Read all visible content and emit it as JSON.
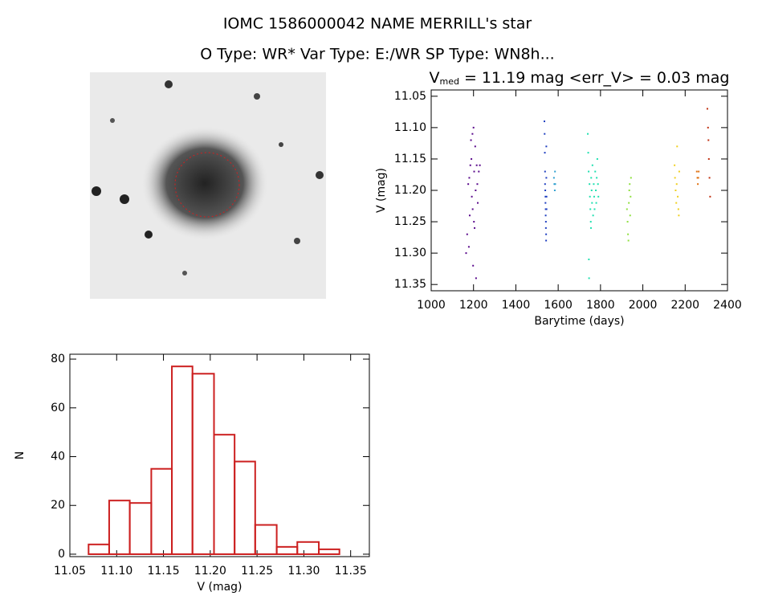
{
  "header": {
    "title": "IOMC 1586000042    NAME MERRILL's star",
    "subtitle": "O Type: WR*   Var Type: E:/WR   SP Type: WN8h..."
  },
  "chart_data": [
    {
      "type": "scatter",
      "title_symbol": "V",
      "title_subscript": "med",
      "title_rest": "= 11.19 mag <err_V> = 0.03 mag",
      "x_label": "Barytime (days)",
      "y_label": "V (mag)",
      "xlim": [
        1000,
        2400
      ],
      "xticks": [
        1000,
        1200,
        1400,
        1600,
        1800,
        2000,
        2200,
        2400
      ],
      "ylim": [
        11.36,
        11.04
      ],
      "yticks": [
        11.05,
        {
          "value": 11.1,
          "label": "11.10"
        },
        11.15,
        {
          "value": 11.2,
          "label": "11.20"
        },
        11.25,
        {
          "value": 11.3,
          "label": "11.30"
        },
        11.35
      ],
      "series": [
        {
          "color": "#5a0a8c",
          "x": [
            1165,
            1170,
            1175,
            1180,
            1182,
            1185,
            1190,
            1192,
            1195,
            1198,
            1200,
            1203,
            1205,
            1208,
            1210,
            1212,
            1215,
            1220,
            1225,
            1230,
            1178,
            1188,
            1196,
            1202,
            1218
          ],
          "y": [
            11.3,
            11.27,
            11.19,
            11.18,
            11.24,
            11.16,
            11.15,
            11.21,
            11.11,
            11.32,
            11.1,
            11.17,
            11.26,
            11.13,
            11.2,
            11.34,
            11.16,
            11.22,
            11.17,
            11.16,
            11.29,
            11.12,
            11.23,
            11.25,
            11.19
          ]
        },
        {
          "color": "#2040c0",
          "x": [
            1535,
            1536,
            1537,
            1538,
            1538,
            1539,
            1540,
            1540,
            1541,
            1541,
            1542,
            1542,
            1543,
            1543,
            1544,
            1544,
            1545,
            1545
          ],
          "y": [
            11.09,
            11.11,
            11.14,
            11.17,
            11.19,
            11.2,
            11.21,
            11.22,
            11.23,
            11.24,
            11.25,
            11.26,
            11.27,
            11.28,
            11.13,
            11.18,
            11.21,
            11.23
          ]
        },
        {
          "color": "#30a0d0",
          "x": [
            1580,
            1582,
            1584,
            1585,
            1586
          ],
          "y": [
            11.18,
            11.19,
            11.2,
            11.17,
            11.19
          ]
        },
        {
          "color": "#20e0b0",
          "x": [
            1740,
            1742,
            1744,
            1745,
            1746,
            1748,
            1750,
            1752,
            1754,
            1755,
            1756,
            1758,
            1760,
            1762,
            1765,
            1768,
            1770,
            1772,
            1775,
            1778,
            1780,
            1782,
            1785,
            1788,
            1790
          ],
          "y": [
            11.11,
            11.14,
            11.17,
            11.31,
            11.34,
            11.19,
            11.21,
            11.23,
            11.25,
            11.26,
            11.18,
            11.2,
            11.22,
            11.16,
            11.24,
            11.19,
            11.21,
            11.23,
            11.17,
            11.2,
            11.22,
            11.18,
            11.15,
            11.19,
            11.21
          ]
        },
        {
          "color": "#90e040",
          "x": [
            1925,
            1928,
            1930,
            1932,
            1934,
            1936,
            1938,
            1940,
            1942,
            1944
          ],
          "y": [
            11.23,
            11.25,
            11.27,
            11.28,
            11.22,
            11.2,
            11.19,
            11.24,
            11.21,
            11.18
          ]
        },
        {
          "color": "#f0d020",
          "x": [
            2150,
            2152,
            2155,
            2158,
            2160,
            2162,
            2165,
            2168,
            2170,
            2172
          ],
          "y": [
            11.16,
            11.18,
            11.2,
            11.22,
            11.19,
            11.13,
            11.21,
            11.23,
            11.24,
            11.17
          ]
        },
        {
          "color": "#e07010",
          "x": [
            2255,
            2258,
            2260,
            2262,
            2264
          ],
          "y": [
            11.17,
            11.18,
            11.19,
            11.18,
            11.17
          ]
        },
        {
          "color": "#c03010",
          "x": [
            2305,
            2308,
            2310,
            2312,
            2315,
            2318
          ],
          "y": [
            11.07,
            11.1,
            11.12,
            11.15,
            11.18,
            11.21
          ]
        }
      ]
    },
    {
      "type": "histogram",
      "x_label": "V (mag)",
      "y_label": "N",
      "color": "#cc2020",
      "bins": [
        11.07,
        11.092,
        11.114,
        11.137,
        11.159,
        11.181,
        11.204,
        11.226,
        11.248,
        11.271,
        11.293,
        11.316,
        11.338
      ],
      "counts": [
        4,
        22,
        21,
        35,
        77,
        74,
        49,
        38,
        12,
        3,
        5,
        2
      ],
      "xlim": [
        11.05,
        11.37
      ],
      "xticks": [
        11.05,
        {
          "value": 11.1,
          "label": "11.10"
        },
        11.15,
        {
          "value": 11.2,
          "label": "11.20"
        },
        11.25,
        {
          "value": 11.3,
          "label": "11.30"
        },
        11.35
      ],
      "ylim": [
        -1,
        82
      ],
      "yticks": [
        0,
        20,
        40,
        60,
        80
      ]
    }
  ]
}
